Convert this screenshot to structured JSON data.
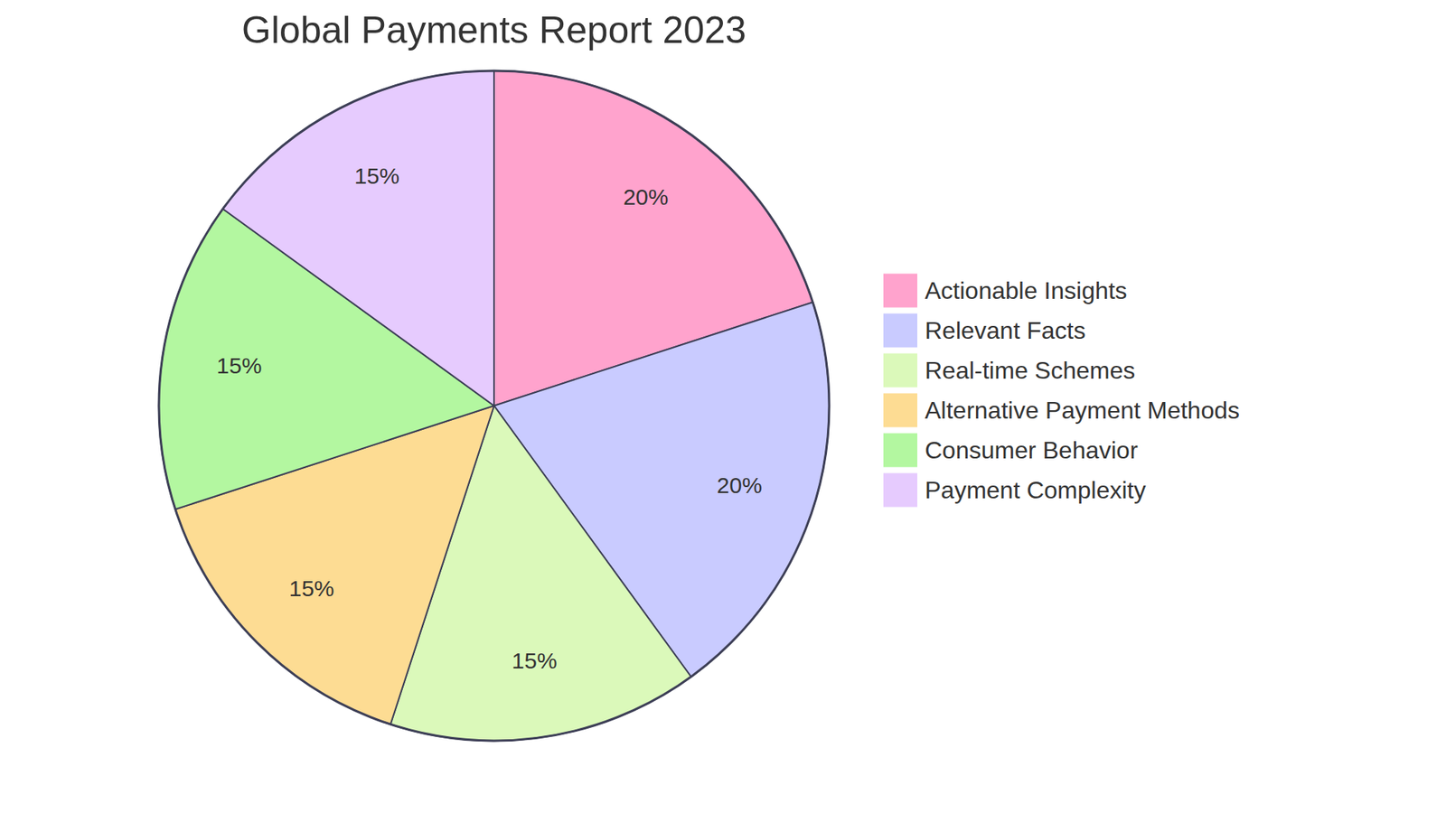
{
  "chart_data": {
    "type": "pie",
    "title": "Global Payments Report 2023",
    "categories": [
      "Actionable Insights",
      "Relevant Facts",
      "Real-time Schemes",
      "Alternative Payment Methods",
      "Consumer Behavior",
      "Payment Complexity"
    ],
    "values": [
      20,
      20,
      15,
      15,
      15,
      15
    ],
    "value_labels": [
      "20%",
      "20%",
      "15%",
      "15%",
      "15%",
      "15%"
    ],
    "colors": [
      "#ffa3cd",
      "#c9cbff",
      "#dbf9ba",
      "#fddc93",
      "#b3f7a0",
      "#e6cbfe"
    ],
    "data_labels": true,
    "legend": "right"
  }
}
